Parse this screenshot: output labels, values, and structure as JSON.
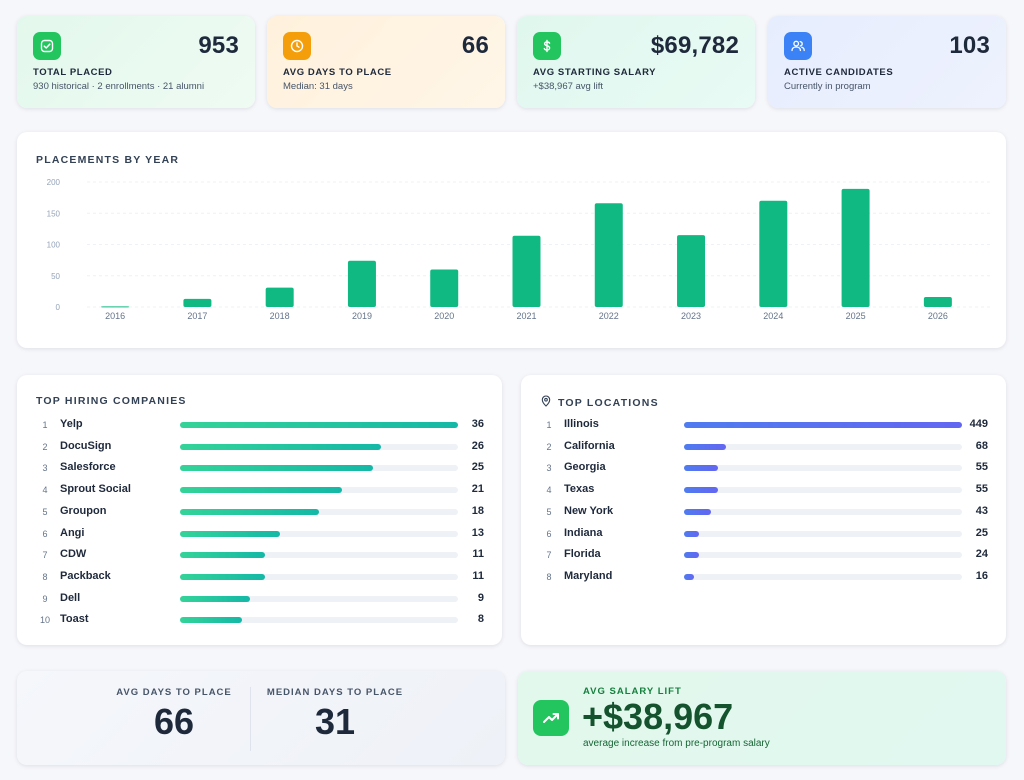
{
  "stats": [
    {
      "value": "953",
      "label": "TOTAL PLACED",
      "sub": "930 historical · 2 enrollments · 21 alumni",
      "icon": "check-icon",
      "color": "#22c55e"
    },
    {
      "value": "66",
      "label": "AVG DAYS TO PLACE",
      "sub": "Median: 31 days",
      "icon": "clock-icon",
      "color": "#f59e0b"
    },
    {
      "value": "$69,782",
      "label": "AVG STARTING SALARY",
      "sub": "+$38,967 avg lift",
      "icon": "dollar-icon",
      "color": "#22c55e"
    },
    {
      "value": "103",
      "label": "ACTIVE CANDIDATES",
      "sub": "Currently in program",
      "icon": "users-icon",
      "color": "#3b82f6"
    }
  ],
  "chart": {
    "title": "PLACEMENTS BY YEAR",
    "bar_color": "#10b981"
  },
  "chart_data": {
    "type": "bar",
    "title": "PLACEMENTS BY YEAR",
    "categories": [
      "2016",
      "2017",
      "2018",
      "2019",
      "2020",
      "2021",
      "2022",
      "2023",
      "2024",
      "2025",
      "2026"
    ],
    "values": [
      1,
      13,
      31,
      74,
      60,
      114,
      166,
      115,
      170,
      189,
      16
    ],
    "ylim": [
      0,
      200
    ],
    "yticks": [
      0,
      50,
      100,
      150,
      200
    ],
    "grid": true,
    "xlabel": "",
    "ylabel": ""
  },
  "companies": {
    "title": "TOP HIRING COMPANIES",
    "max": 36,
    "items": [
      {
        "rank": "1",
        "name": "Yelp",
        "count": 36
      },
      {
        "rank": "2",
        "name": "DocuSign",
        "count": 26
      },
      {
        "rank": "3",
        "name": "Salesforce",
        "count": 25
      },
      {
        "rank": "4",
        "name": "Sprout Social",
        "count": 21
      },
      {
        "rank": "5",
        "name": "Groupon",
        "count": 18
      },
      {
        "rank": "6",
        "name": "Angi",
        "count": 13
      },
      {
        "rank": "7",
        "name": "CDW",
        "count": 11
      },
      {
        "rank": "8",
        "name": "Packback",
        "count": 11
      },
      {
        "rank": "9",
        "name": "Dell",
        "count": 9
      },
      {
        "rank": "10",
        "name": "Toast",
        "count": 8
      }
    ]
  },
  "locations": {
    "title": "TOP LOCATIONS",
    "icon": "map-pin-icon",
    "max": 449,
    "items": [
      {
        "rank": "1",
        "name": "Illinois",
        "count": 449
      },
      {
        "rank": "2",
        "name": "California",
        "count": 68
      },
      {
        "rank": "3",
        "name": "Georgia",
        "count": 55
      },
      {
        "rank": "4",
        "name": "Texas",
        "count": 55
      },
      {
        "rank": "5",
        "name": "New York",
        "count": 43
      },
      {
        "rank": "6",
        "name": "Indiana",
        "count": 25
      },
      {
        "rank": "7",
        "name": "Florida",
        "count": 24
      },
      {
        "rank": "8",
        "name": "Maryland",
        "count": 16
      }
    ]
  },
  "days": {
    "avg_label": "AVG DAYS TO PLACE",
    "avg_value": "66",
    "median_label": "MEDIAN DAYS TO PLACE",
    "median_value": "31"
  },
  "lift": {
    "label": "AVG SALARY LIFT",
    "value": "+$38,967",
    "sub": "average increase from pre-program salary",
    "icon": "trending-up-icon"
  }
}
